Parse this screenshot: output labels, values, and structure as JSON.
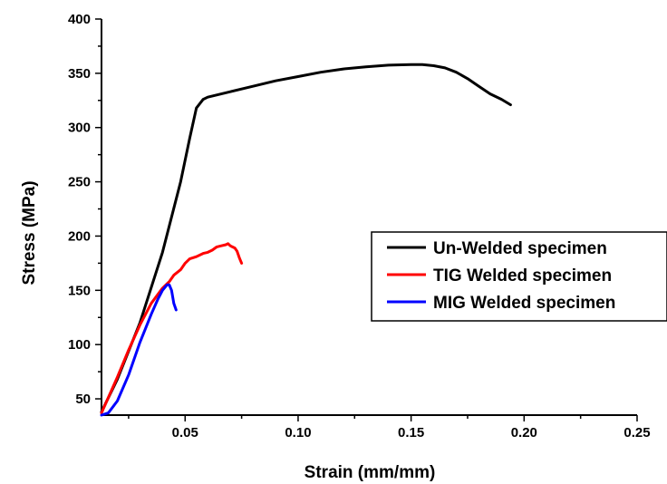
{
  "chart_data": {
    "type": "line",
    "title": "",
    "xlabel": "Strain (mm/mm)",
    "ylabel": "Stress (MPa)",
    "xlim": [
      0.013,
      0.25
    ],
    "ylim": [
      35,
      400
    ],
    "xticks": [
      0.05,
      0.1,
      0.15,
      0.2,
      0.25
    ],
    "xtick_labels": [
      "0.05",
      "0.10",
      "0.15",
      "0.20",
      "0.25"
    ],
    "yticks": [
      50,
      100,
      150,
      200,
      250,
      300,
      350,
      400
    ],
    "ytick_labels": [
      "50",
      "100",
      "150",
      "200",
      "250",
      "300",
      "350",
      "400"
    ],
    "grid": false,
    "legend_position": "right",
    "series": [
      {
        "name": "Un-Welded specimen",
        "color": "#000000",
        "points": [
          [
            0.013,
            38
          ],
          [
            0.02,
            68
          ],
          [
            0.03,
            120
          ],
          [
            0.04,
            185
          ],
          [
            0.048,
            250
          ],
          [
            0.052,
            290
          ],
          [
            0.055,
            318
          ],
          [
            0.058,
            326
          ],
          [
            0.06,
            328
          ],
          [
            0.07,
            333
          ],
          [
            0.08,
            338
          ],
          [
            0.09,
            343
          ],
          [
            0.1,
            347
          ],
          [
            0.11,
            351
          ],
          [
            0.12,
            354
          ],
          [
            0.13,
            356
          ],
          [
            0.14,
            357.5
          ],
          [
            0.15,
            358
          ],
          [
            0.155,
            358
          ],
          [
            0.16,
            357
          ],
          [
            0.165,
            355
          ],
          [
            0.17,
            351
          ],
          [
            0.175,
            345
          ],
          [
            0.18,
            338
          ],
          [
            0.185,
            331
          ],
          [
            0.19,
            326
          ],
          [
            0.194,
            321
          ]
        ]
      },
      {
        "name": "TIG Welded specimen",
        "color": "#ff0000",
        "points": [
          [
            0.013,
            37
          ],
          [
            0.02,
            70
          ],
          [
            0.025,
            95
          ],
          [
            0.03,
            118
          ],
          [
            0.035,
            138
          ],
          [
            0.04,
            152
          ],
          [
            0.043,
            158
          ],
          [
            0.045,
            164
          ],
          [
            0.048,
            169
          ],
          [
            0.05,
            175
          ],
          [
            0.052,
            179
          ],
          [
            0.055,
            181
          ],
          [
            0.058,
            184
          ],
          [
            0.06,
            185
          ],
          [
            0.062,
            187
          ],
          [
            0.064,
            190
          ],
          [
            0.066,
            191
          ],
          [
            0.068,
            192
          ],
          [
            0.069,
            193
          ],
          [
            0.07,
            191
          ],
          [
            0.072,
            189
          ],
          [
            0.073,
            186
          ],
          [
            0.074,
            180
          ],
          [
            0.075,
            175
          ]
        ]
      },
      {
        "name": "MIG Welded specimen",
        "color": "#0000ff",
        "points": [
          [
            0.013,
            35
          ],
          [
            0.016,
            37
          ],
          [
            0.02,
            48
          ],
          [
            0.025,
            72
          ],
          [
            0.03,
            102
          ],
          [
            0.035,
            128
          ],
          [
            0.038,
            142
          ],
          [
            0.04,
            150
          ],
          [
            0.042,
            155
          ],
          [
            0.043,
            155
          ],
          [
            0.044,
            150
          ],
          [
            0.045,
            138
          ],
          [
            0.046,
            132
          ]
        ]
      }
    ]
  }
}
